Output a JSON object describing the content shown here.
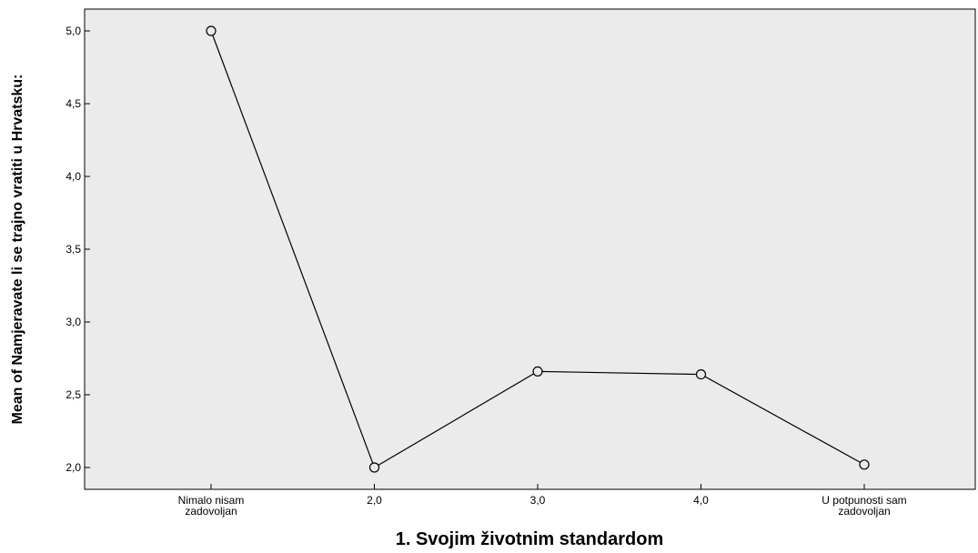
{
  "chart_data": {
    "type": "line",
    "title": "",
    "xlabel": "1. Svojim životnim standardom",
    "ylabel": "Mean of Namjeravate li se trajno vratiti u Hrvatsku:",
    "categories": [
      [
        "Nimalo nisam",
        "zadovoljan"
      ],
      [
        "2,0"
      ],
      [
        "3,0"
      ],
      [
        "4,0"
      ],
      [
        "U potpunosti sam",
        "zadovoljan"
      ]
    ],
    "values": [
      5.0,
      2.0,
      2.66,
      2.64,
      2.02
    ],
    "yticks": [
      "2,0",
      "2,5",
      "3,0",
      "3,5",
      "4,0",
      "4,5",
      "5,0"
    ],
    "ytick_values": [
      2.0,
      2.5,
      3.0,
      3.5,
      4.0,
      4.5,
      5.0
    ],
    "ylim": [
      1.85,
      5.15
    ],
    "grid": false,
    "colors": {
      "plot_background": "#ebebeb",
      "line": "#000000",
      "marker_fill": "#ebebeb"
    }
  }
}
